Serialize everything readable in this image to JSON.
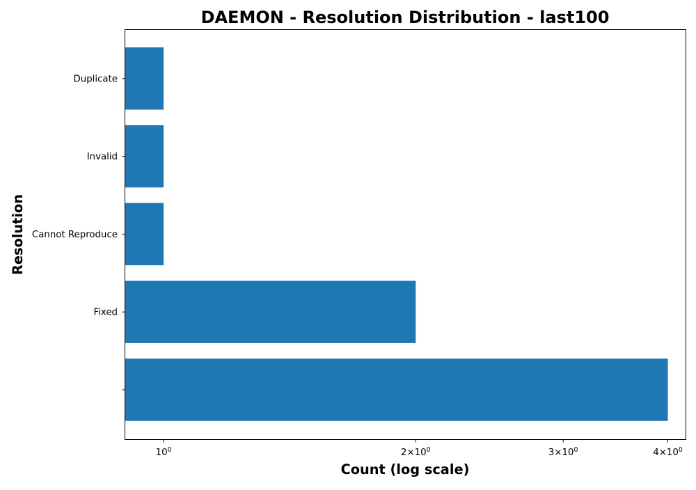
{
  "chart_data": {
    "type": "bar",
    "orientation": "horizontal",
    "title": "DAEMON - Resolution Distribution - last100",
    "xlabel": "Count (log scale)",
    "ylabel": "Resolution",
    "x_scale": "log",
    "xlim": [
      0.9,
      4.2
    ],
    "categories": [
      "",
      "Fixed",
      "Cannot Reproduce",
      "Invalid",
      "Duplicate"
    ],
    "values": [
      4,
      2,
      1,
      1,
      1
    ],
    "bar_color": "#1f77b4",
    "x_ticks": [
      {
        "value": 1,
        "base": "10",
        "exp": "0",
        "coef": ""
      },
      {
        "value": 2,
        "base": "10",
        "exp": "0",
        "coef": "2×"
      },
      {
        "value": 3,
        "base": "10",
        "exp": "0",
        "coef": "3×"
      },
      {
        "value": 4,
        "base": "10",
        "exp": "0",
        "coef": "4×"
      }
    ],
    "grid": false,
    "legend": false
  }
}
